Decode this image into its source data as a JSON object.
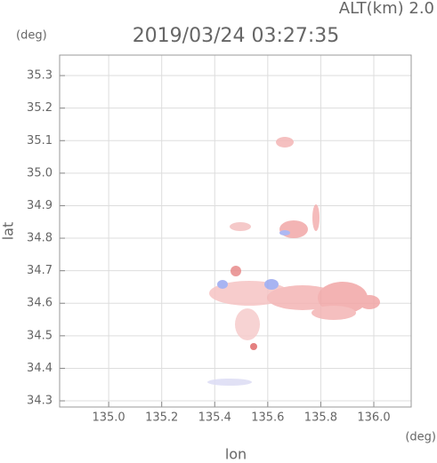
{
  "chart_data": {
    "type": "map",
    "title": "2019/03/24 03:27:35",
    "altitude_label": "ALT(km)  2.0",
    "y_unit": "(deg)",
    "x_unit": "(deg)",
    "xlabel": "lon",
    "ylabel": "lat",
    "xlim": [
      134.815,
      136.141
    ],
    "ylim": [
      34.281,
      35.363
    ],
    "xticks": [
      {
        "value": 135.0,
        "label": "135.0"
      },
      135.2,
      135.4,
      135.6,
      135.8,
      {
        "value": 136.0,
        "label": "136.0"
      }
    ],
    "yticks": [
      34.3,
      34.4,
      34.5,
      34.6,
      34.7,
      34.8,
      34.9,
      {
        "value": 35.0,
        "label": "35.0"
      },
      35.1,
      35.2,
      35.3
    ],
    "grid": true
  }
}
